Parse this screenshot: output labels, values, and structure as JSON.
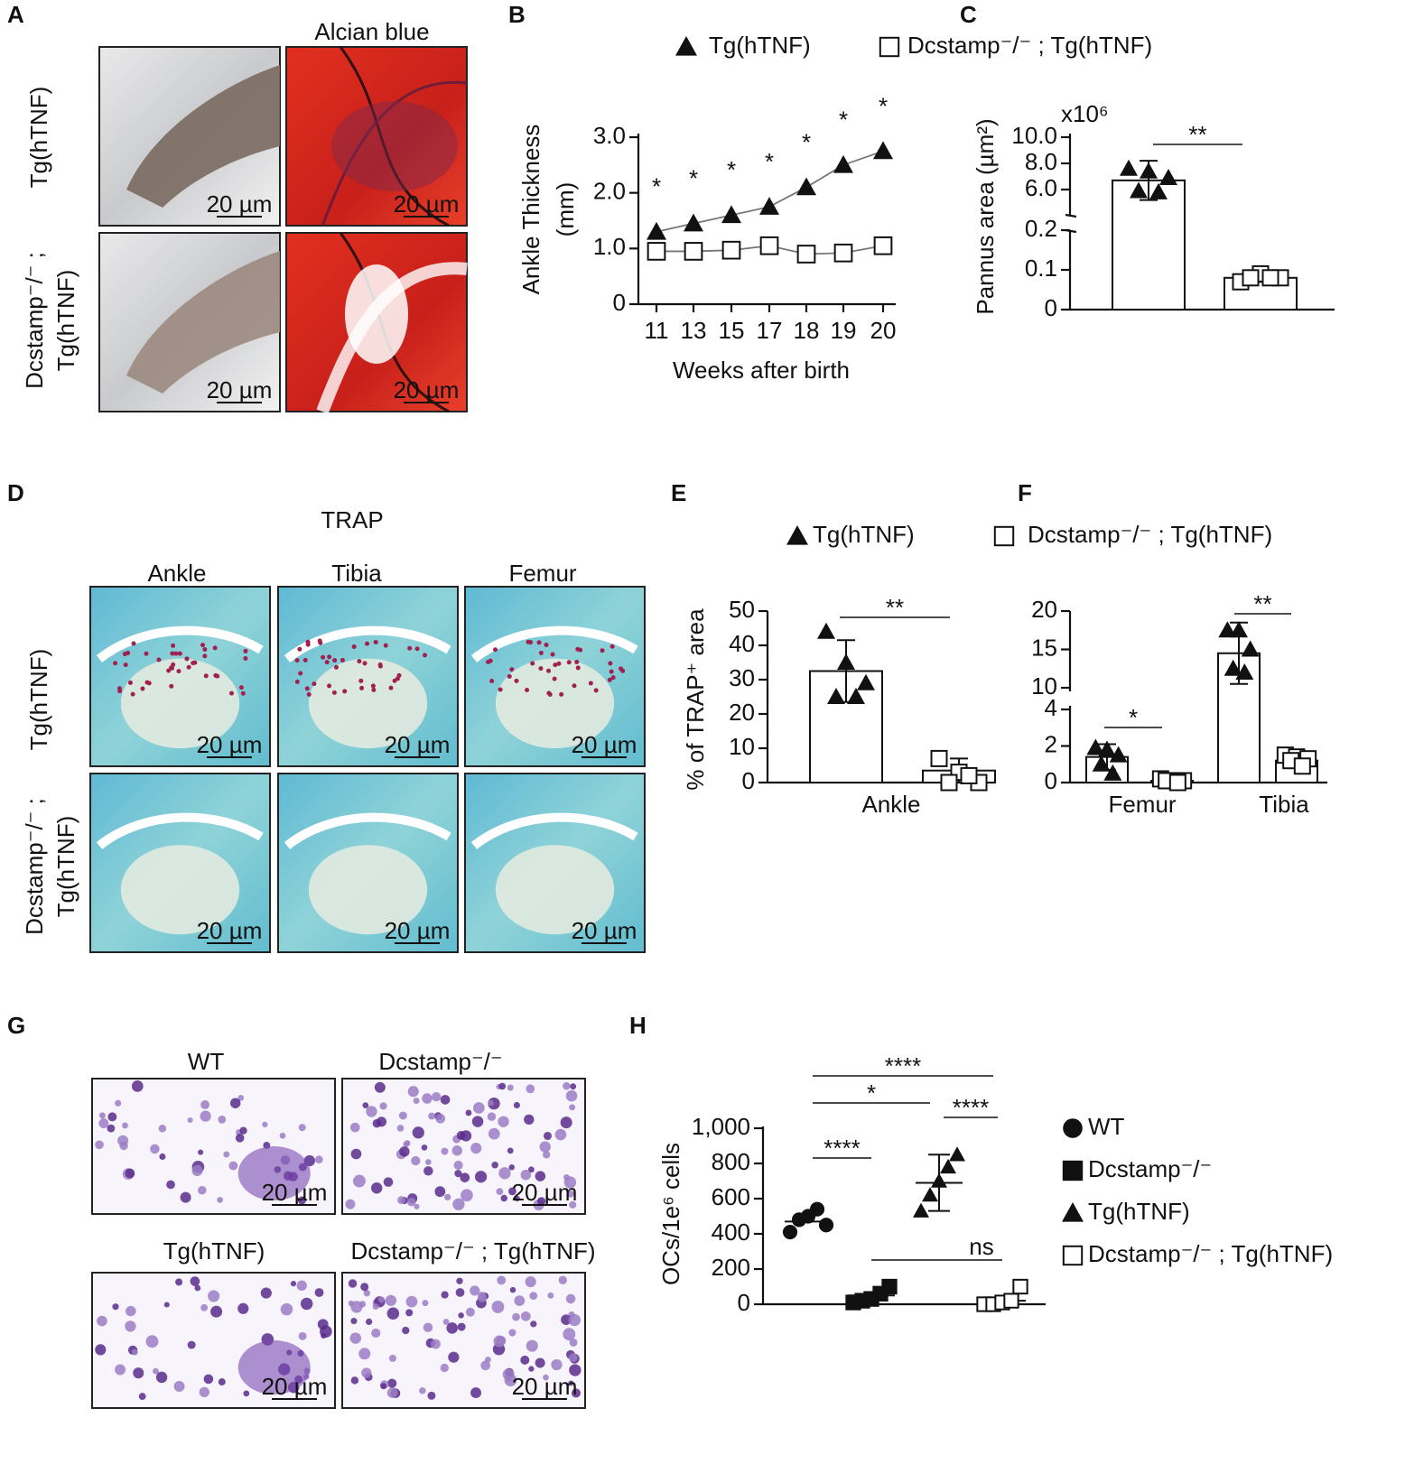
{
  "figure": {
    "panel_labels": [
      "A",
      "B",
      "C",
      "D",
      "E",
      "F",
      "G",
      "H"
    ],
    "scale_bar": "20 µm",
    "panel_a": {
      "column_title": "Alcian blue",
      "row_labels": [
        "Tg(hTNF)",
        "Dcstamp⁻/⁻ ;",
        "Tg(hTNF)"
      ]
    },
    "panel_d": {
      "title": "TRAP",
      "columns": [
        "Ankle",
        "Tibia",
        "Femur"
      ],
      "row_labels": [
        "Tg(hTNF)",
        "Dcstamp⁻/⁻ ;",
        "Tg(hTNF)"
      ]
    },
    "panel_g": {
      "titles": [
        "WT",
        "Dcstamp⁻/⁻",
        "Tg(hTNF)",
        "Dcstamp⁻/⁻ ; Tg(hTNF)"
      ]
    }
  },
  "chart_data": [
    {
      "type": "line",
      "xlabel": "Weeks after birth",
      "ylabel": [
        "Ankle Thickness",
        "(mm)"
      ],
      "categories": [
        "11",
        "13",
        "15",
        "17",
        "18",
        "19",
        "20"
      ],
      "series": [
        {
          "name": "Tg(hTNF)",
          "marker": "triangle",
          "color": "#111111",
          "values": [
            1.3,
            1.45,
            1.6,
            1.75,
            2.1,
            2.5,
            2.75
          ]
        },
        {
          "name": "Dcstamp⁻/⁻ ; Tg(hTNF)",
          "marker": "open-square",
          "color": "#111111",
          "values": [
            0.95,
            0.95,
            0.97,
            1.05,
            0.9,
            0.92,
            1.05
          ]
        }
      ],
      "line_color": "#777777",
      "annotations": [
        "*",
        "*",
        "*",
        "*",
        "*",
        "*",
        "*"
      ],
      "ylim": [
        0,
        3
      ],
      "yticks": [
        0,
        {
          "value": 1,
          "label": "1.0"
        },
        {
          "value": 2,
          "label": "2.0"
        },
        {
          "value": 3,
          "label": "3.0"
        }
      ]
    },
    {
      "type": "broken-bar",
      "ylabel": "Pannus area (µm²)",
      "axis_multiplier": "x10⁶",
      "series": [
        {
          "marker": "triangle",
          "values": [
            6.7
          ],
          "errors": [
            1.5
          ],
          "points": [
            [
              7.6,
              7.4,
              6.9,
              5.9,
              5.8
            ]
          ]
        },
        {
          "marker": "open-square",
          "values": [
            0.08
          ],
          "errors": [
            0.01
          ],
          "points": [
            [
              0.07,
              0.09,
              0.08,
              0.08,
              0.08
            ]
          ]
        }
      ],
      "annotations": [
        "**"
      ],
      "ylim_lower": [
        0,
        0.2
      ],
      "ylim_upper": [
        6,
        10
      ],
      "yticks": [
        0,
        0.1,
        0.2,
        {
          "value": 6,
          "label": "6.0"
        },
        {
          "value": 8,
          "label": "8.0"
        },
        {
          "value": 10,
          "label": "10.0"
        }
      ]
    },
    {
      "type": "bar",
      "ylabel": "% of TRAP⁺ area",
      "categories": [
        "Ankle"
      ],
      "series": [
        {
          "name": "Tg(hTNF)",
          "marker": "triangle",
          "values": [
            32.5
          ],
          "errors": [
            9
          ],
          "points": [
            [
              44,
              35,
              29,
              25,
              25
            ]
          ]
        },
        {
          "name": "Dcstamp⁻/⁻ ; Tg(hTNF)",
          "marker": "open-square",
          "values": [
            3.5
          ],
          "errors": [
            3.5
          ],
          "points": [
            [
              7,
              3,
              0,
              0,
              2
            ]
          ]
        }
      ],
      "annotations": [
        "**"
      ],
      "ylim": [
        0,
        50
      ],
      "yticks": [
        0,
        10,
        20,
        30,
        40,
        50
      ]
    },
    {
      "type": "broken-bar",
      "categories": [
        "Femur",
        "Tibia"
      ],
      "series": [
        {
          "marker": "triangle",
          "values": [
            1.4,
            14.5
          ],
          "errors": [
            0.7,
            4
          ],
          "points": [
            [
              1.9,
              1.8,
              1.5,
              1.0,
              0.5
            ],
            [
              17.5,
              17.5,
              15,
              12.5,
              12
            ]
          ]
        },
        {
          "marker": "open-square",
          "values": [
            0.1,
            1.2
          ],
          "errors": [
            0.1,
            0.4
          ],
          "points": [
            [
              0.2,
              0.1,
              0.1,
              0.1,
              0
            ],
            [
              1.5,
              1.4,
              1.3,
              1.2,
              0.9
            ]
          ]
        }
      ],
      "annotations": [
        "*",
        "**"
      ],
      "ylim_lower": [
        0,
        4
      ],
      "ylim_upper": [
        10,
        20
      ],
      "yticks": [
        0,
        2,
        4,
        10,
        15,
        20
      ]
    },
    {
      "type": "dot",
      "ylabel": "OCs/1e⁶ cells",
      "series": [
        {
          "name": "WT",
          "marker": "circle",
          "values": [
            410,
            480,
            500,
            540,
            450
          ],
          "mean": 470
        },
        {
          "name": "Dcstamp⁻/⁻",
          "marker": "square",
          "values": [
            10,
            20,
            30,
            60,
            100
          ],
          "mean": 50
        },
        {
          "name": "Tg(hTNF)",
          "marker": "triangle",
          "values": [
            530,
            620,
            700,
            780,
            850
          ],
          "mean": 690,
          "error": 160
        },
        {
          "name": "Dcstamp⁻/⁻ ; Tg(hTNF)",
          "marker": "open-square",
          "values": [
            0,
            0,
            10,
            20,
            100
          ],
          "mean": 20
        }
      ],
      "annotations": [
        "****",
        "*",
        "****",
        "****",
        "ns"
      ],
      "ylim": [
        0,
        1000
      ],
      "yticks": [
        0,
        200,
        400,
        600,
        800,
        {
          "value": 1000,
          "label": "1,000"
        }
      ]
    }
  ]
}
